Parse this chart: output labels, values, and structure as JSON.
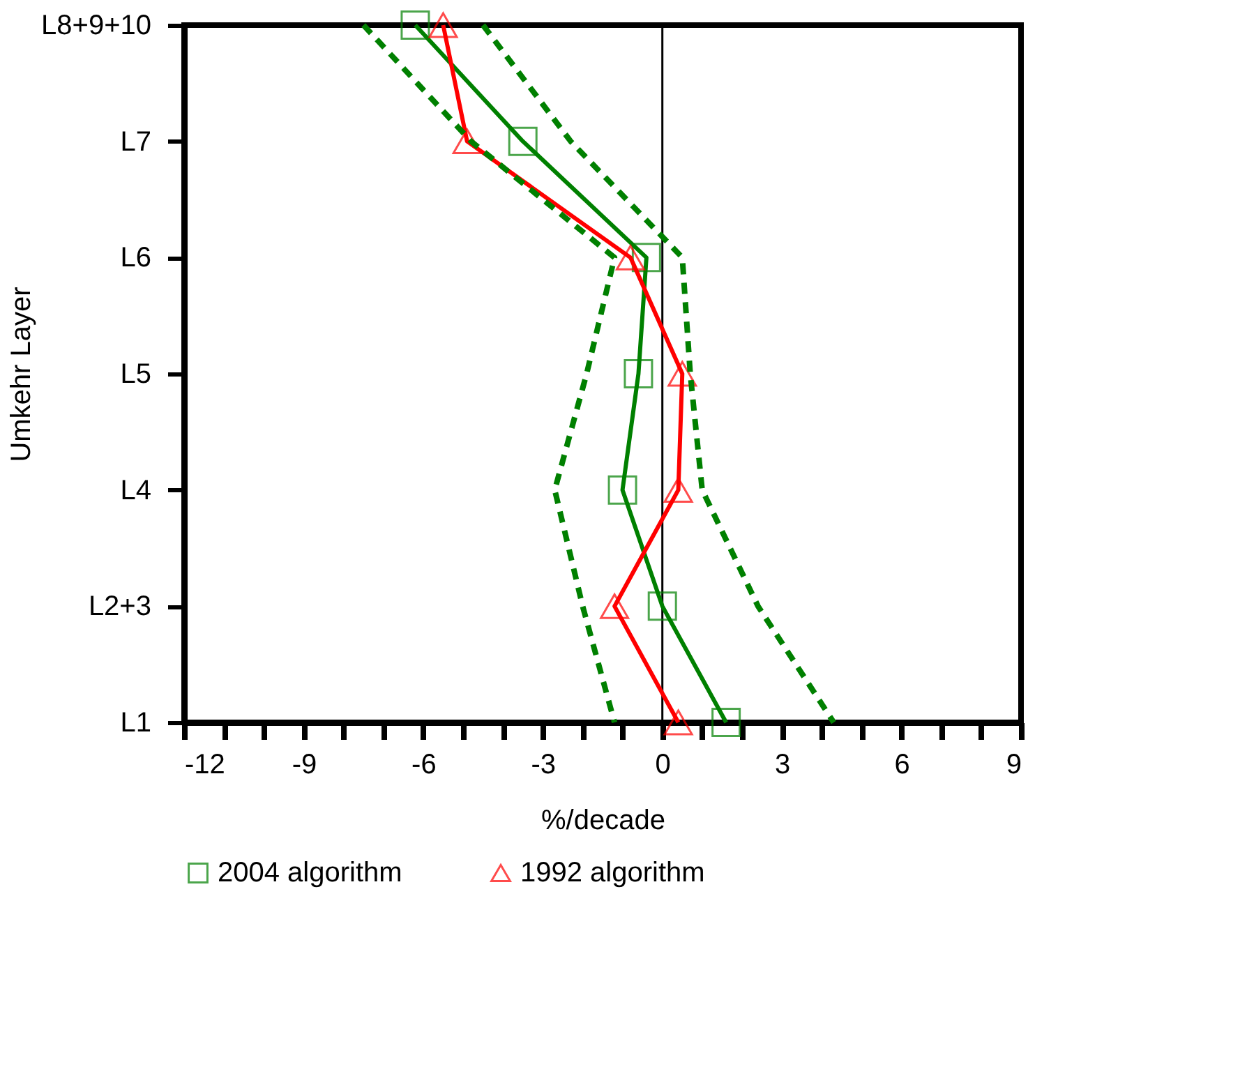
{
  "chart_data": {
    "type": "line",
    "orientation": "horizontal",
    "xlabel": "%/decade",
    "ylabel": "Umkehr Layer",
    "categories": [
      "L8+9+10",
      "L7",
      "L6",
      "L5",
      "L4",
      "L2+3",
      "L1"
    ],
    "series": [
      {
        "name": "2004 algorithm",
        "color": "#008000",
        "marker": "square",
        "line_style": "solid",
        "values": [
          -6.2,
          -3.5,
          -0.4,
          -0.6,
          -1.0,
          0.0,
          1.6
        ]
      },
      {
        "name": "1992 algorithm",
        "color": "#ff0000",
        "marker": "triangle",
        "line_style": "solid",
        "values": [
          -5.5,
          -4.9,
          -0.8,
          0.5,
          0.4,
          -1.2,
          0.4
        ]
      },
      {
        "color": "#008000",
        "marker": "none",
        "line_style": "dashed",
        "values": [
          -7.5,
          -4.8,
          -1.2,
          -1.9,
          -2.7,
          -2.0,
          -1.2
        ]
      },
      {
        "color": "#008000",
        "marker": "none",
        "line_style": "dashed",
        "values": [
          -4.5,
          -2.3,
          0.5,
          0.7,
          1.0,
          2.4,
          4.3
        ]
      }
    ],
    "xlim": [
      -12,
      9
    ],
    "xticks": [
      -12,
      {
        "value": -11,
        "label": null
      },
      {
        "value": -10,
        "label": null
      },
      -9,
      {
        "value": -8,
        "label": null
      },
      {
        "value": -7,
        "label": null
      },
      -6,
      {
        "value": -5,
        "label": null
      },
      {
        "value": -4,
        "label": null
      },
      -3,
      {
        "value": -2,
        "label": null
      },
      {
        "value": -1,
        "label": null
      },
      0,
      {
        "value": 1,
        "label": null
      },
      {
        "value": 2,
        "label": null
      },
      3,
      {
        "value": 4,
        "label": null
      },
      {
        "value": 5,
        "label": null
      },
      6,
      {
        "value": 7,
        "label": null
      },
      {
        "value": 8,
        "label": null
      },
      9
    ],
    "ref_lines": [
      {
        "axis": "x",
        "value": 0,
        "color": "#000000"
      }
    ],
    "grid": false,
    "legend": "bottom"
  }
}
